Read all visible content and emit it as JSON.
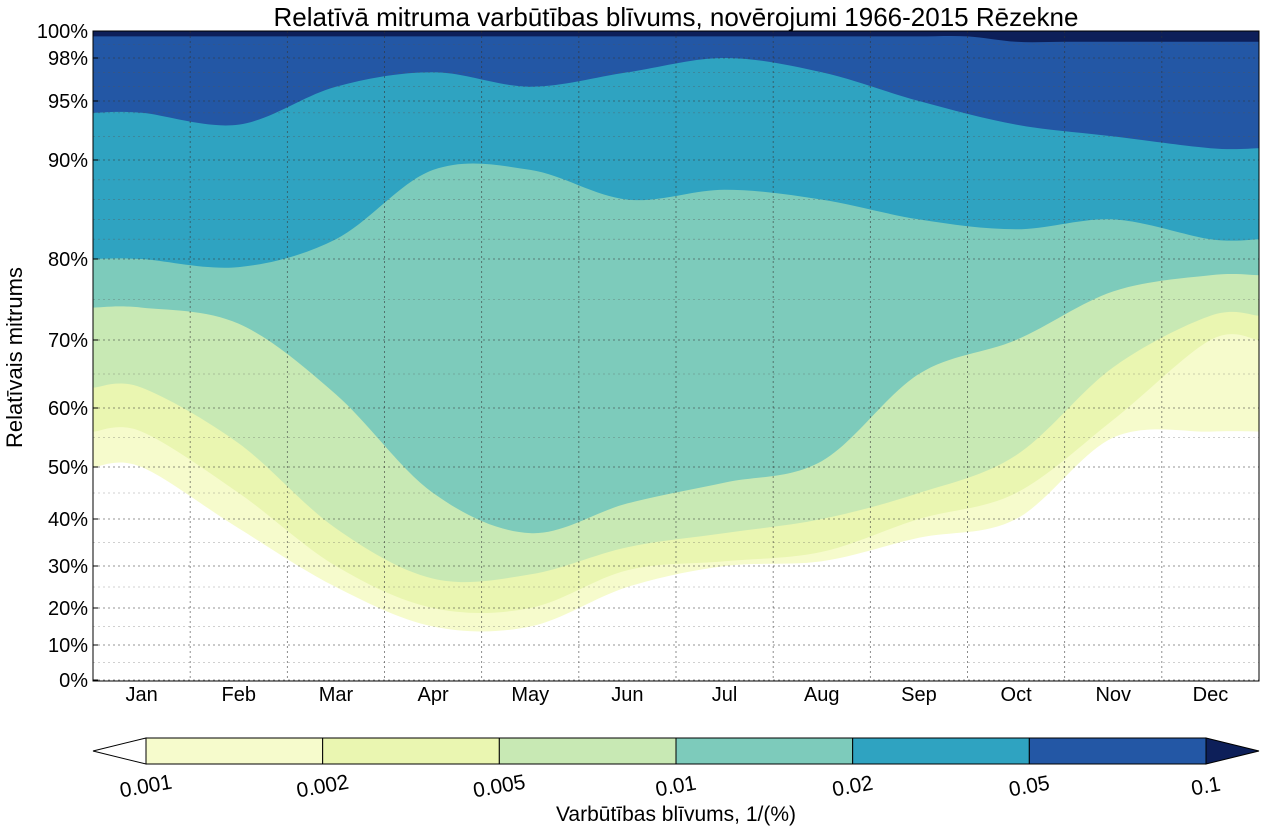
{
  "chart_data": {
    "type": "heatmap",
    "title": "Relatīvā mitruma varbūtības blīvums, novērojumi 1966-2015 Rēzekne",
    "ylabel": "Relatīvais mitrums",
    "x_categories": [
      "Jan",
      "Feb",
      "Mar",
      "Apr",
      "May",
      "Jun",
      "Jul",
      "Aug",
      "Sep",
      "Oct",
      "Nov",
      "Dec"
    ],
    "y_ticks": [
      "0%",
      "10%",
      "20%",
      "30%",
      "40%",
      "50%",
      "60%",
      "70%",
      "80%",
      "90%",
      "95%",
      "98%",
      "100%"
    ],
    "grid": true,
    "colorbar": {
      "label": "Varbūtības blīvums, 1/(%)",
      "levels": [
        0.001,
        0.002,
        0.005,
        0.01,
        0.02,
        0.05,
        0.1
      ],
      "tick_labels": [
        "0.001",
        "0.002",
        "0.005",
        "0.01",
        "0.02",
        "0.05",
        "0.1"
      ],
      "colors": [
        "#f6fbcc",
        "#eaf6b1",
        "#c8e9b4",
        "#7dcbbb",
        "#2fa3c1",
        "#2357a5",
        "#0d1f59"
      ],
      "extend": "both"
    },
    "contour_boundaries_percent": {
      "month_x": [
        "Jan",
        "Feb",
        "Mar",
        "Apr",
        "May",
        "Jun",
        "Jul",
        "Aug",
        "Sep",
        "Oct",
        "Nov",
        "Dec"
      ],
      "level_0.001": [
        50,
        38,
        25,
        15,
        15,
        25,
        30,
        31,
        36,
        40,
        55,
        56
      ],
      "level_0.002": [
        56,
        45,
        30,
        20,
        20,
        29,
        31,
        33,
        40,
        45,
        58,
        70
      ],
      "level_0.005": [
        63,
        54,
        38,
        27,
        28,
        34,
        37,
        40,
        45,
        52,
        66,
        73
      ],
      "level_0.01": [
        74,
        72,
        62,
        45,
        37,
        43,
        47,
        51,
        65,
        70,
        76,
        78
      ],
      "level_0.02": [
        80,
        79,
        82,
        89,
        89,
        86,
        87,
        86,
        84,
        83,
        84,
        82
      ],
      "level_0.05": [
        94,
        93,
        96,
        97,
        96,
        97,
        98,
        97,
        95,
        93,
        92,
        91
      ]
    }
  }
}
